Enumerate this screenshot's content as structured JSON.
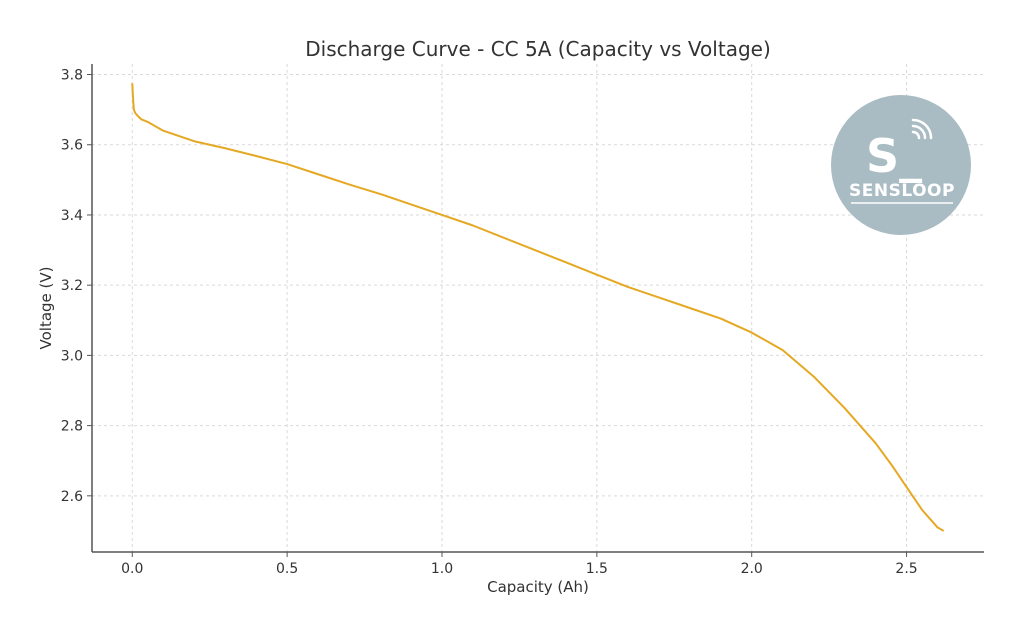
{
  "chart_data": {
    "type": "line",
    "title": "Discharge Curve - CC 5A (Capacity vs Voltage)",
    "xlabel": "Capacity (Ah)",
    "ylabel": "Voltage (V)",
    "xlim": [
      -0.13,
      2.75
    ],
    "ylim": [
      2.44,
      3.83
    ],
    "xticks": [
      0.0,
      0.5,
      1.0,
      1.5,
      2.0,
      2.5
    ],
    "xtick_labels": [
      "0.0",
      "0.5",
      "1.0",
      "1.5",
      "2.0",
      "2.5"
    ],
    "yticks": [
      2.6,
      2.8,
      3.0,
      3.2,
      3.4,
      3.6,
      3.8
    ],
    "ytick_labels": [
      "2.6",
      "2.8",
      "3.0",
      "3.2",
      "3.4",
      "3.6",
      "3.8"
    ],
    "grid": true,
    "series": [
      {
        "color": "#e5a823",
        "x": [
          0.0,
          0.002,
          0.005,
          0.01,
          0.02,
          0.03,
          0.05,
          0.07,
          0.1,
          0.15,
          0.2,
          0.3,
          0.4,
          0.5,
          0.6,
          0.7,
          0.8,
          0.9,
          1.0,
          1.1,
          1.2,
          1.3,
          1.4,
          1.5,
          1.6,
          1.7,
          1.8,
          1.9,
          2.0,
          2.1,
          2.2,
          2.3,
          2.4,
          2.45,
          2.5,
          2.55,
          2.6,
          2.62
        ],
        "y": [
          3.775,
          3.74,
          3.7,
          3.69,
          3.68,
          3.672,
          3.665,
          3.655,
          3.64,
          3.625,
          3.61,
          3.59,
          3.568,
          3.545,
          3.516,
          3.487,
          3.46,
          3.43,
          3.4,
          3.37,
          3.335,
          3.3,
          3.265,
          3.23,
          3.195,
          3.165,
          3.135,
          3.105,
          3.065,
          3.015,
          2.94,
          2.85,
          2.75,
          2.69,
          2.625,
          2.56,
          2.51,
          2.5
        ]
      }
    ]
  },
  "logo": {
    "text": "SENSLOOP",
    "mark": "S_",
    "icon": "wifi-signal-icon",
    "color": "#a9bcc4"
  }
}
